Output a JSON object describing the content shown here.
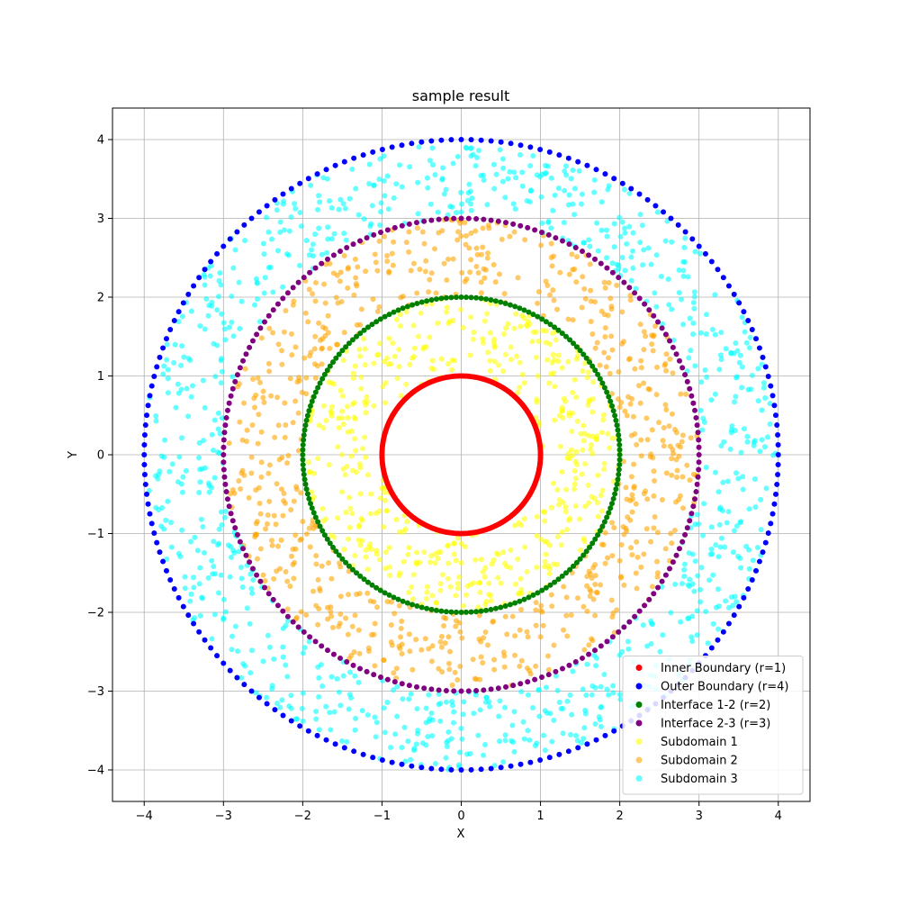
{
  "chart_data": {
    "type": "scatter",
    "title": "sample result",
    "xlabel": "X",
    "ylabel": "Y",
    "xlim": [
      -4.4,
      4.4
    ],
    "ylim": [
      -4.4,
      4.4
    ],
    "xticks": [
      -4,
      -3,
      -2,
      -1,
      0,
      1,
      2,
      3,
      4
    ],
    "yticks": [
      -4,
      -3,
      -2,
      -1,
      0,
      1,
      2,
      3,
      4
    ],
    "xtick_labels": [
      "−4",
      "−3",
      "−2",
      "−1",
      "0",
      "1",
      "2",
      "3",
      "4"
    ],
    "ytick_labels": [
      "−4",
      "−3",
      "−2",
      "−1",
      "0",
      "1",
      "2",
      "3",
      "4"
    ],
    "grid": true,
    "legend_position": "bottom-right",
    "series": [
      {
        "name": "Inner Boundary (r=1)",
        "color": "#ff0000",
        "opacity": 1.0,
        "kind": "circle",
        "radius": 1,
        "count": 300
      },
      {
        "name": "Outer Boundary (r=4)",
        "color": "#0000ff",
        "opacity": 1.0,
        "kind": "circle",
        "radius": 4,
        "count": 200
      },
      {
        "name": "Interface 1-2 (r=2)",
        "color": "#008000",
        "opacity": 1.0,
        "kind": "circle",
        "radius": 2,
        "count": 200
      },
      {
        "name": "Interface 2-3 (r=3)",
        "color": "#800080",
        "opacity": 1.0,
        "kind": "circle",
        "radius": 3,
        "count": 200
      },
      {
        "name": "Subdomain 1",
        "color": "#ffff00",
        "opacity": 0.6,
        "kind": "annulus",
        "r_inner": 1,
        "r_outer": 2,
        "count": 500
      },
      {
        "name": "Subdomain 2",
        "color": "#ffa500",
        "opacity": 0.6,
        "kind": "annulus",
        "r_inner": 2,
        "r_outer": 3,
        "count": 700
      },
      {
        "name": "Subdomain 3",
        "color": "#00ffff",
        "opacity": 0.6,
        "kind": "annulus",
        "r_inner": 3,
        "r_outer": 4,
        "count": 900
      }
    ]
  }
}
